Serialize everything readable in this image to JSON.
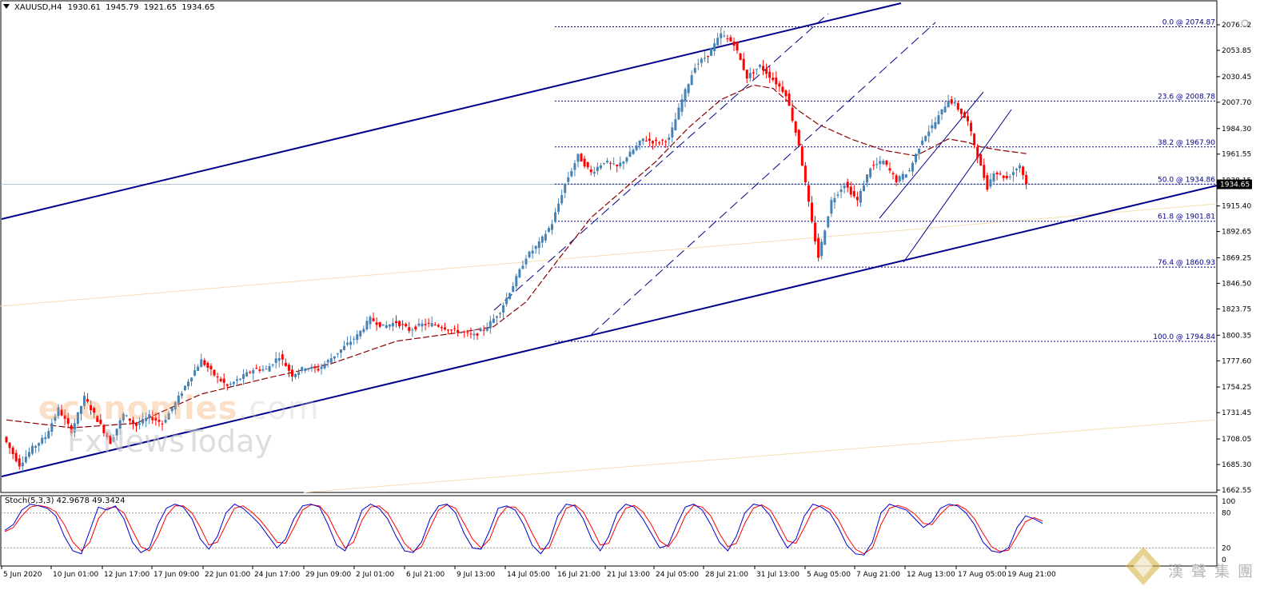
{
  "header": {
    "symbol": "XAUUSD,H4",
    "ohlc": "1930.61 1945.79 1921.65 1934.65"
  },
  "stoch_label": "Stoch(5,3,3) 42.9678 49.3424",
  "watermark": {
    "word": "economies",
    "dotcom": ".com",
    "line2": "FxNewsToday"
  },
  "logo": {
    "text": "漢聲集團"
  },
  "colors": {
    "bull": "#4682b4",
    "bear": "#ff0000",
    "channel": "#00008b",
    "fib": "#00008b",
    "ma": "#8b0000",
    "stoch_main": "#0000cd",
    "stoch_signal": "#ff0000",
    "pale_line": "#f5deb3",
    "grid_text": "#000000"
  },
  "chart_data": {
    "type": "candlestick",
    "symbol": "XAUUSD",
    "timeframe": "H4",
    "ylim": [
      1662.55,
      2076.62
    ],
    "y_ticks": [
      "2076.62",
      "2053.85",
      "2030.45",
      "2007.70",
      "1984.30",
      "1961.55",
      "1938.15",
      "1915.40",
      "1892.65",
      "1869.25",
      "1846.50",
      "1823.75",
      "1800.35",
      "1777.60",
      "1754.25",
      "1731.45",
      "1708.05",
      "1685.30",
      "1662.55"
    ],
    "current_price": "1934.65",
    "x_labels": [
      "5 Jun 2020",
      "10 Jun 01:00",
      "12 Jun 17:00",
      "17 Jun 09:00",
      "22 Jun 01:00",
      "24 Jun 17:00",
      "29 Jun 09:00",
      "2 Jul 01:00",
      "6 Jul 21:00",
      "9 Jul 13:00",
      "14 Jul 05:00",
      "16 Jul 21:00",
      "21 Jul 13:00",
      "24 Jul 05:00",
      "28 Jul 21:00",
      "31 Jul 13:00",
      "5 Aug 05:00",
      "7 Aug 21:00",
      "12 Aug 13:00",
      "17 Aug 05:00",
      "19 Aug 21:00"
    ],
    "fibonacci": [
      {
        "label": "0.0 @ 2074.87",
        "value": 2074.87
      },
      {
        "label": "23.6 @ 2008.78",
        "value": 2008.78
      },
      {
        "label": "38.2 @ 1967.90",
        "value": 1967.9
      },
      {
        "label": "50.0 @ 1934.86",
        "value": 1934.86
      },
      {
        "label": "61.8 @ 1901.81",
        "value": 1901.81
      },
      {
        "label": "76.4 @ 1860.93",
        "value": 1860.93
      },
      {
        "label": "100.0 @ 1794.84",
        "value": 1794.84
      }
    ],
    "price_path": [
      [
        0,
        1705
      ],
      [
        4,
        1685
      ],
      [
        8,
        1700
      ],
      [
        12,
        1710
      ],
      [
        16,
        1735
      ],
      [
        20,
        1715
      ],
      [
        24,
        1745
      ],
      [
        28,
        1725
      ],
      [
        32,
        1705
      ],
      [
        36,
        1730
      ],
      [
        40,
        1720
      ],
      [
        44,
        1728
      ],
      [
        48,
        1722
      ],
      [
        52,
        1740
      ],
      [
        56,
        1760
      ],
      [
        60,
        1778
      ],
      [
        64,
        1765
      ],
      [
        68,
        1755
      ],
      [
        72,
        1762
      ],
      [
        76,
        1770
      ],
      [
        80,
        1770
      ],
      [
        84,
        1782
      ],
      [
        88,
        1765
      ],
      [
        92,
        1772
      ],
      [
        96,
        1770
      ],
      [
        100,
        1780
      ],
      [
        104,
        1790
      ],
      [
        108,
        1800
      ],
      [
        112,
        1815
      ],
      [
        116,
        1808
      ],
      [
        120,
        1812
      ],
      [
        124,
        1805
      ],
      [
        128,
        1810
      ],
      [
        132,
        1810
      ],
      [
        136,
        1806
      ],
      [
        140,
        1803
      ],
      [
        144,
        1800
      ],
      [
        148,
        1808
      ],
      [
        152,
        1822
      ],
      [
        156,
        1845
      ],
      [
        160,
        1870
      ],
      [
        164,
        1882
      ],
      [
        168,
        1900
      ],
      [
        172,
        1935
      ],
      [
        176,
        1960
      ],
      [
        180,
        1945
      ],
      [
        184,
        1955
      ],
      [
        188,
        1950
      ],
      [
        192,
        1962
      ],
      [
        196,
        1975
      ],
      [
        200,
        1972
      ],
      [
        204,
        1975
      ],
      [
        208,
        2010
      ],
      [
        212,
        2040
      ],
      [
        216,
        2050
      ],
      [
        220,
        2068
      ],
      [
        224,
        2060
      ],
      [
        228,
        2030
      ],
      [
        232,
        2040
      ],
      [
        236,
        2028
      ],
      [
        240,
        2015
      ],
      [
        244,
        1970
      ],
      [
        248,
        1900
      ],
      [
        250,
        1870
      ],
      [
        254,
        1920
      ],
      [
        258,
        1935
      ],
      [
        262,
        1920
      ],
      [
        266,
        1950
      ],
      [
        270,
        1955
      ],
      [
        274,
        1938
      ],
      [
        278,
        1947
      ],
      [
        282,
        1975
      ],
      [
        286,
        1990
      ],
      [
        290,
        2010
      ],
      [
        292,
        2006
      ],
      [
        296,
        1990
      ],
      [
        300,
        1950
      ],
      [
        302,
        1932
      ],
      [
        304,
        1946
      ],
      [
        308,
        1940
      ],
      [
        312,
        1952
      ],
      [
        314,
        1935
      ]
    ],
    "ma_path": [
      [
        0,
        1725
      ],
      [
        20,
        1718
      ],
      [
        40,
        1722
      ],
      [
        60,
        1748
      ],
      [
        80,
        1762
      ],
      [
        100,
        1775
      ],
      [
        120,
        1795
      ],
      [
        140,
        1803
      ],
      [
        150,
        1808
      ],
      [
        160,
        1830
      ],
      [
        170,
        1868
      ],
      [
        180,
        1905
      ],
      [
        190,
        1930
      ],
      [
        200,
        1955
      ],
      [
        210,
        1985
      ],
      [
        220,
        2010
      ],
      [
        230,
        2023
      ],
      [
        236,
        2020
      ],
      [
        244,
        2000
      ],
      [
        250,
        1988
      ],
      [
        260,
        1975
      ],
      [
        270,
        1965
      ],
      [
        280,
        1960
      ],
      [
        290,
        1975
      ],
      [
        296,
        1972
      ],
      [
        300,
        1968
      ],
      [
        306,
        1965
      ],
      [
        314,
        1962
      ]
    ],
    "stoch_main": [
      50,
      60,
      85,
      95,
      92,
      88,
      75,
      40,
      15,
      10,
      50,
      90,
      85,
      92,
      70,
      30,
      12,
      20,
      60,
      88,
      95,
      90,
      70,
      35,
      18,
      40,
      80,
      95,
      88,
      75,
      60,
      40,
      20,
      35,
      70,
      92,
      95,
      90,
      60,
      25,
      15,
      45,
      85,
      95,
      88,
      70,
      40,
      15,
      12,
      30,
      70,
      92,
      95,
      80,
      45,
      20,
      18,
      50,
      88,
      92,
      85,
      60,
      25,
      10,
      30,
      75,
      95,
      92,
      70,
      35,
      15,
      40,
      80,
      95,
      90,
      70,
      45,
      20,
      25,
      60,
      90,
      95,
      85,
      60,
      30,
      15,
      40,
      80,
      95,
      92,
      75,
      45,
      20,
      35,
      75,
      95,
      90,
      80,
      55,
      25,
      10,
      8,
      30,
      80,
      95,
      90,
      85,
      70,
      55,
      65,
      88,
      95,
      92,
      80,
      60,
      30,
      15,
      12,
      20,
      55,
      75,
      70,
      62
    ],
    "stoch_signal": [
      48,
      55,
      75,
      90,
      93,
      90,
      82,
      60,
      30,
      15,
      30,
      70,
      88,
      90,
      80,
      50,
      22,
      15,
      40,
      75,
      92,
      92,
      80,
      55,
      25,
      30,
      60,
      88,
      92,
      82,
      68,
      50,
      30,
      28,
      55,
      85,
      94,
      92,
      75,
      45,
      20,
      30,
      68,
      90,
      92,
      80,
      55,
      28,
      14,
      22,
      55,
      85,
      94,
      88,
      62,
      35,
      20,
      35,
      72,
      90,
      90,
      75,
      45,
      18,
      20,
      55,
      88,
      94,
      82,
      55,
      25,
      28,
      62,
      88,
      93,
      82,
      60,
      32,
      22,
      42,
      75,
      93,
      90,
      75,
      45,
      22,
      28,
      62,
      88,
      94,
      85,
      60,
      32,
      28,
      55,
      85,
      93,
      86,
      68,
      40,
      18,
      10,
      20,
      60,
      88,
      93,
      88,
      78,
      62,
      60,
      78,
      92,
      94,
      86,
      70,
      45,
      22,
      14,
      16,
      40,
      65,
      72,
      66
    ]
  }
}
